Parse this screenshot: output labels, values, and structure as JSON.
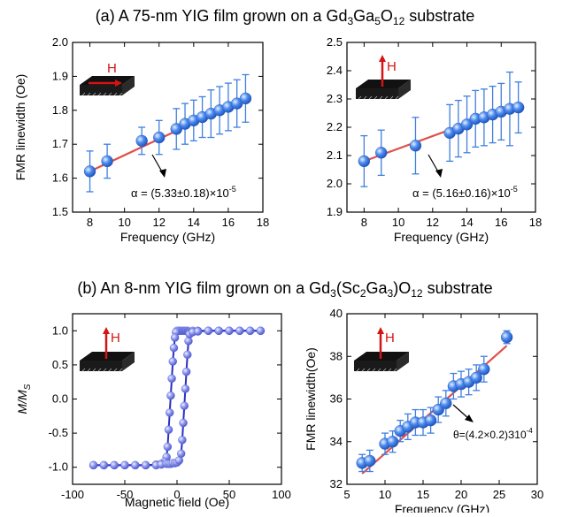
{
  "colors": {
    "marker": "#3f7fe0",
    "fit_line": "#e0504a",
    "hysteresis": "#7a86e6",
    "hysteresis_line": "#2b2fc0",
    "arrow_field": "#d41414",
    "axis": "#000000"
  },
  "section_a": {
    "prefix": "(a) A 75-nm YIG film grown on a Gd",
    "s1": "3",
    "m1": "Ga",
    "s2": "5",
    "m2": "O",
    "s3": "12",
    "suffix": " substrate"
  },
  "section_b": {
    "prefix": "(b) An 8-nm YIG film grown on a Gd",
    "s1": "3",
    "m1": "(Sc",
    "s2": "2",
    "m2": "Ga",
    "s3": "3",
    "m3": ")O",
    "s4": "12",
    "suffix": " substrate"
  },
  "chart_data": [
    {
      "id": "a1",
      "type": "scatter",
      "xlabel": "Frequency (GHz)",
      "ylabel": "FMR linewidth (Oe)",
      "xlim": [
        7,
        18
      ],
      "ylim": [
        1.5,
        2.0
      ],
      "xticks": [
        "8",
        "10",
        "12",
        "14",
        "16",
        "18"
      ],
      "yticks": [
        "1.5",
        "1.6",
        "1.7",
        "1.8",
        "1.9",
        "2.0"
      ],
      "field_label": "H",
      "field_dir": "in-plane",
      "annotation": {
        "pre": "α = (5.33±0.18)×10",
        "exp": "-5"
      },
      "x": [
        8,
        9,
        11,
        12,
        13,
        13.5,
        14,
        14.5,
        15,
        15.5,
        16,
        16.5,
        17
      ],
      "y": [
        1.62,
        1.65,
        1.71,
        1.72,
        1.745,
        1.76,
        1.77,
        1.78,
        1.79,
        1.8,
        1.81,
        1.82,
        1.835
      ],
      "err": [
        0.06,
        0.05,
        0.04,
        0.05,
        0.06,
        0.06,
        0.06,
        0.06,
        0.07,
        0.07,
        0.07,
        0.07,
        0.07
      ],
      "fit": [
        [
          8,
          1.62
        ],
        [
          17,
          1.835
        ]
      ]
    },
    {
      "id": "a2",
      "type": "scatter",
      "xlabel": "Frequency (GHz)",
      "ylabel": "",
      "xlim": [
        7,
        18
      ],
      "ylim": [
        1.9,
        2.5
      ],
      "xticks": [
        "8",
        "10",
        "12",
        "14",
        "16",
        "18"
      ],
      "yticks": [
        "1.9",
        "2.0",
        "2.1",
        "2.2",
        "2.3",
        "2.4",
        "2.5"
      ],
      "field_label": "H",
      "field_dir": "out-of-plane",
      "annotation": {
        "pre": "α = (5.16±0.16)×10",
        "exp": "-5"
      },
      "x": [
        8,
        9,
        11,
        13,
        13.5,
        14,
        14.5,
        15,
        15.5,
        16,
        16.5,
        17
      ],
      "y": [
        2.08,
        2.11,
        2.135,
        2.18,
        2.195,
        2.21,
        2.23,
        2.235,
        2.245,
        2.255,
        2.265,
        2.27
      ],
      "err": [
        0.09,
        0.08,
        0.1,
        0.1,
        0.1,
        0.1,
        0.1,
        0.1,
        0.1,
        0.1,
        0.13,
        0.09
      ],
      "fit": [
        [
          8,
          2.08
        ],
        [
          17,
          2.28
        ]
      ]
    },
    {
      "id": "b1",
      "type": "line",
      "xlabel": "Magnetic field (Oe)",
      "ylabel_pre": "M/M",
      "ylabel_sub": "S",
      "xlim": [
        -100,
        100
      ],
      "ylim": [
        -1.25,
        1.25
      ],
      "xticks": [
        "-100",
        "-50",
        "0",
        "50",
        "100"
      ],
      "yticks": [
        "-1.0",
        "-0.5",
        "0.0",
        "0.5",
        "1.0"
      ],
      "field_label": "H",
      "field_dir": "out-of-plane",
      "branch_down": {
        "x": [
          80,
          70,
          60,
          50,
          40,
          30,
          20,
          15,
          10,
          8,
          6,
          4,
          2,
          0,
          -1,
          -2,
          -3,
          -4,
          -5,
          -6,
          -7,
          -8,
          -9,
          -10,
          -12,
          -15,
          -20,
          -30,
          -40,
          -50,
          -60,
          -70,
          -80
        ],
        "y": [
          1.0,
          1.0,
          1.0,
          1.0,
          1.0,
          1.0,
          1.0,
          1.0,
          1.0,
          1.0,
          1.0,
          1.0,
          1.0,
          1.0,
          0.98,
          0.9,
          0.75,
          0.55,
          0.3,
          0.05,
          -0.2,
          -0.45,
          -0.7,
          -0.85,
          -0.92,
          -0.95,
          -0.96,
          -0.97,
          -0.97,
          -0.97,
          -0.97,
          -0.97,
          -0.97
        ]
      },
      "branch_up": {
        "x": [
          -80,
          -70,
          -60,
          -50,
          -40,
          -30,
          -20,
          -15,
          -10,
          -8,
          -6,
          -4,
          -2,
          0,
          2,
          4,
          5,
          6,
          7,
          8,
          9,
          10,
          11,
          12,
          15,
          20,
          30,
          40,
          50,
          60,
          70,
          80
        ],
        "y": [
          -0.97,
          -0.97,
          -0.97,
          -0.97,
          -0.97,
          -0.97,
          -0.97,
          -0.96,
          -0.95,
          -0.95,
          -0.95,
          -0.94,
          -0.94,
          -0.93,
          -0.9,
          -0.8,
          -0.6,
          -0.35,
          -0.1,
          0.15,
          0.4,
          0.65,
          0.85,
          0.95,
          0.98,
          0.99,
          1.0,
          1.0,
          1.0,
          1.0,
          1.0,
          1.0
        ]
      }
    },
    {
      "id": "b2",
      "type": "scatter",
      "xlabel": "Frequency (GHz)",
      "ylabel": "FMR linewidth(Oe)",
      "xlim": [
        5,
        30
      ],
      "ylim": [
        32,
        40
      ],
      "xticks": [
        "5",
        "10",
        "15",
        "20",
        "25",
        "30"
      ],
      "yticks": [
        "32",
        "34",
        "36",
        "38",
        "40"
      ],
      "field_label": "H",
      "field_dir": "out-of-plane",
      "annotation": {
        "pre": "θ=(4.2×0.2)З10",
        "exp": "-4"
      },
      "x": [
        7,
        8,
        10,
        11,
        12,
        13,
        14,
        15,
        16,
        17,
        18,
        19,
        20,
        21,
        22,
        23,
        26
      ],
      "y": [
        33.0,
        33.1,
        33.9,
        34.0,
        34.5,
        34.7,
        34.9,
        34.9,
        35.0,
        35.5,
        35.8,
        36.6,
        36.7,
        36.8,
        37.0,
        37.4,
        38.9
      ],
      "err": [
        0.4,
        0.5,
        0.5,
        0.5,
        0.5,
        0.6,
        0.6,
        0.6,
        0.6,
        0.6,
        0.6,
        0.6,
        0.6,
        0.6,
        0.6,
        0.6,
        0.3
      ],
      "fit": [
        [
          7,
          32.5
        ],
        [
          26,
          38.5
        ]
      ]
    }
  ]
}
